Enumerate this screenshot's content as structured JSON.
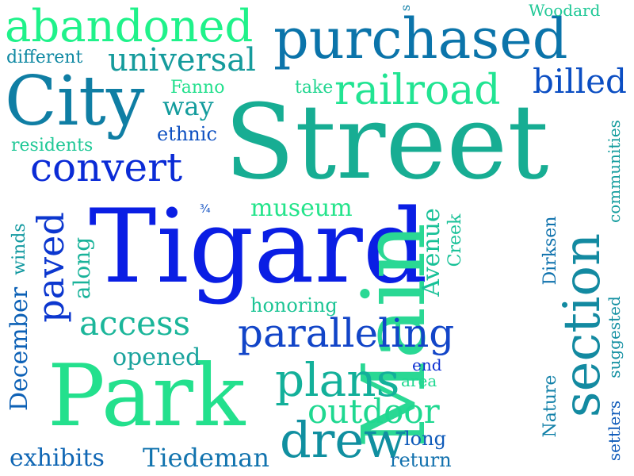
{
  "words": [
    {
      "text": "Street",
      "color": "#17ad93"
    },
    {
      "text": "Tigard",
      "color": "#0a1ee4"
    },
    {
      "text": "Main",
      "color": "#2ad894"
    },
    {
      "text": "Park",
      "color": "#23e08d"
    },
    {
      "text": "purchased",
      "color": "#0b74aa"
    },
    {
      "text": "City",
      "color": "#0f7ea4"
    },
    {
      "text": "abandoned",
      "color": "#1ff28a"
    },
    {
      "text": "section",
      "color": "#138aa1"
    },
    {
      "text": "paralleling",
      "color": "#1245c8"
    },
    {
      "text": "railroad",
      "color": "#21e492"
    },
    {
      "text": "universal",
      "color": "#159b9c"
    },
    {
      "text": "convert",
      "color": "#0a2bd6"
    },
    {
      "text": "access",
      "color": "#1bb69a"
    },
    {
      "text": "plans",
      "color": "#13b09a"
    },
    {
      "text": "drew",
      "color": "#108fa0"
    },
    {
      "text": "outdoor",
      "color": "#1fd890"
    },
    {
      "text": "paved",
      "color": "#0c37cf"
    },
    {
      "text": "billed",
      "color": "#0b4ec3"
    },
    {
      "text": "exhibits",
      "color": "#0f66b4"
    },
    {
      "text": "Tiedeman",
      "color": "#1173ae"
    },
    {
      "text": "opened",
      "color": "#1aa39d"
    },
    {
      "text": "museum",
      "color": "#24e48b"
    },
    {
      "text": "Avenue",
      "color": "#17c197"
    },
    {
      "text": "December",
      "color": "#0d61b6"
    },
    {
      "text": "way",
      "color": "#139c9d"
    },
    {
      "text": "along",
      "color": "#1ab39a"
    },
    {
      "text": "honoring",
      "color": "#1dc595"
    },
    {
      "text": "return",
      "color": "#1170ad"
    },
    {
      "text": "long",
      "color": "#0e5ab9"
    },
    {
      "text": "residents",
      "color": "#1fc896"
    },
    {
      "text": "ethnic",
      "color": "#0c4fc1"
    },
    {
      "text": "different",
      "color": "#1089a3"
    },
    {
      "text": "Fanno",
      "color": "#23e08d"
    },
    {
      "text": "take",
      "color": "#22d690"
    },
    {
      "text": "Woodard",
      "color": "#1fc896"
    },
    {
      "text": "winds",
      "color": "#1299a0"
    },
    {
      "text": "Creek",
      "color": "#17c197"
    },
    {
      "text": "Dirksen",
      "color": "#0f72ad"
    },
    {
      "text": "Nature",
      "color": "#1180a8"
    },
    {
      "text": "settlers",
      "color": "#0e5ab9"
    },
    {
      "text": "suggested",
      "color": "#1390a2"
    },
    {
      "text": "communities",
      "color": "#139c9d"
    },
    {
      "text": "end",
      "color": "#0d2fd2"
    },
    {
      "text": "area",
      "color": "#1fd890"
    },
    {
      "text": "s",
      "color": "#1180a8"
    },
    {
      "text": "¾",
      "color": "#0f4fc1"
    }
  ]
}
